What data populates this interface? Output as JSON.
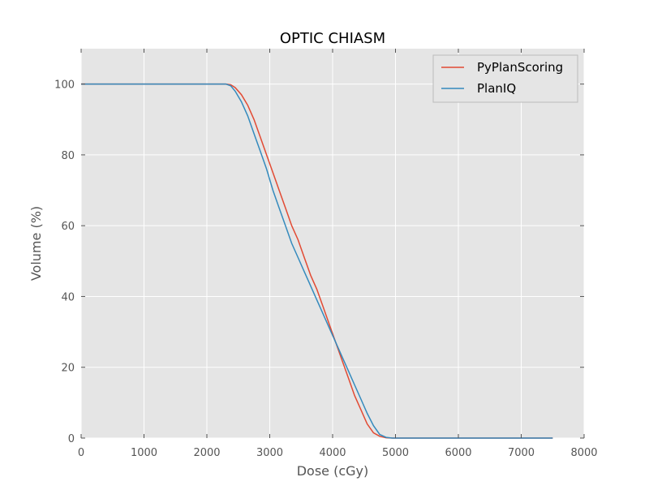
{
  "chart_data": {
    "type": "line",
    "title": "OPTIC CHIASM",
    "xlabel": "Dose (cGy)",
    "ylabel": "Volume (%)",
    "xlim": [
      0,
      8000
    ],
    "ylim": [
      0,
      110
    ],
    "xticks": [
      0,
      1000,
      2000,
      3000,
      4000,
      5000,
      6000,
      7000,
      8000
    ],
    "yticks": [
      0,
      20,
      40,
      60,
      80,
      100
    ],
    "grid": true,
    "legend_position": "top-right",
    "series": [
      {
        "name": "PyPlanScoring",
        "color": "#e24a33",
        "x": [
          0,
          2300,
          2380,
          2450,
          2550,
          2650,
          2750,
          2850,
          2950,
          3050,
          3150,
          3250,
          3350,
          3450,
          3550,
          3650,
          3750,
          3850,
          3950,
          4050,
          4150,
          4250,
          4350,
          4450,
          4550,
          4650,
          4750,
          4850,
          4950,
          5000,
          6000,
          7000,
          7500
        ],
        "y": [
          100,
          100,
          99.8,
          99,
          97,
          94,
          90,
          85,
          80,
          75,
          70,
          65,
          60,
          56,
          51,
          46,
          42,
          37,
          32,
          27,
          22,
          17,
          12,
          8,
          4,
          1.5,
          0.5,
          0.1,
          0,
          0,
          0,
          0,
          0
        ]
      },
      {
        "name": "PlanIQ",
        "color": "#348abd",
        "x": [
          0,
          2300,
          2380,
          2450,
          2550,
          2650,
          2750,
          2850,
          2950,
          3050,
          3150,
          3250,
          3350,
          3450,
          3550,
          3650,
          3750,
          3850,
          3950,
          4050,
          4150,
          4250,
          4350,
          4450,
          4550,
          4650,
          4750,
          4850,
          4950,
          5000,
          6000,
          7000,
          7500
        ],
        "y": [
          100,
          100,
          99.5,
          98,
          95,
          91,
          86,
          81,
          76,
          70,
          65,
          60,
          55,
          51,
          47,
          43,
          39,
          35,
          31,
          27,
          23,
          19,
          15,
          11,
          7,
          3.5,
          1,
          0.2,
          0,
          0,
          0,
          0,
          0
        ]
      }
    ]
  }
}
